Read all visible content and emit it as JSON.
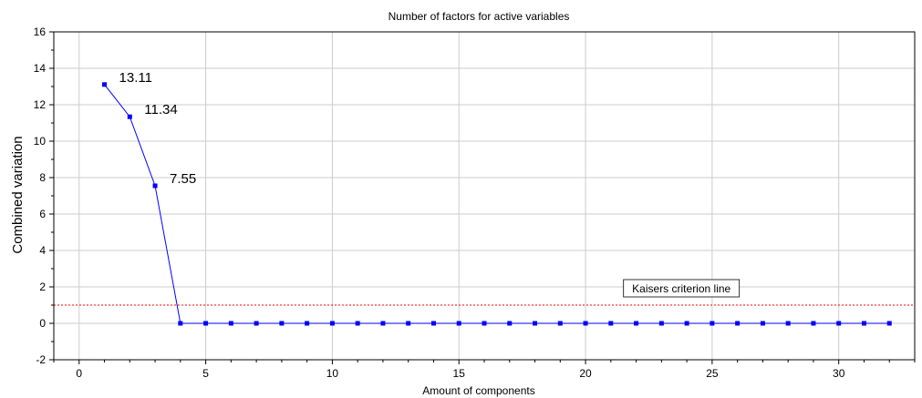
{
  "chart_data": {
    "type": "line",
    "title": "Number of factors for active variables",
    "xlabel": "Amount of components",
    "ylabel": "Combined variation",
    "xlim": [
      -1,
      33
    ],
    "ylim": [
      -2,
      16
    ],
    "xticks": [
      0,
      5,
      10,
      15,
      20,
      25,
      30
    ],
    "yticks": [
      -2,
      0,
      2,
      4,
      6,
      8,
      10,
      12,
      14,
      16
    ],
    "grid": true,
    "series": [
      {
        "color": "#0000ff",
        "x": [
          1,
          2,
          3,
          4,
          5,
          6,
          7,
          8,
          9,
          10,
          11,
          12,
          13,
          14,
          15,
          16,
          17,
          18,
          19,
          20,
          21,
          22,
          23,
          24,
          25,
          26,
          27,
          28,
          29,
          30,
          31,
          32
        ],
        "y": [
          13.11,
          11.34,
          7.55,
          0,
          0,
          0,
          0,
          0,
          0,
          0,
          0,
          0,
          0,
          0,
          0,
          0,
          0,
          0,
          0,
          0,
          0,
          0,
          0,
          0,
          0,
          0,
          0,
          0,
          0,
          0,
          0,
          0
        ]
      }
    ],
    "data_labels": [
      {
        "x": 1,
        "y": 13.11,
        "text": "13.11"
      },
      {
        "x": 2,
        "y": 11.34,
        "text": "11.34"
      },
      {
        "x": 3,
        "y": 7.55,
        "text": "7.55"
      }
    ],
    "reference_line": {
      "y": 1,
      "color": "#ff0000",
      "style": "dotted",
      "label": "Kaisers criterion line"
    }
  }
}
